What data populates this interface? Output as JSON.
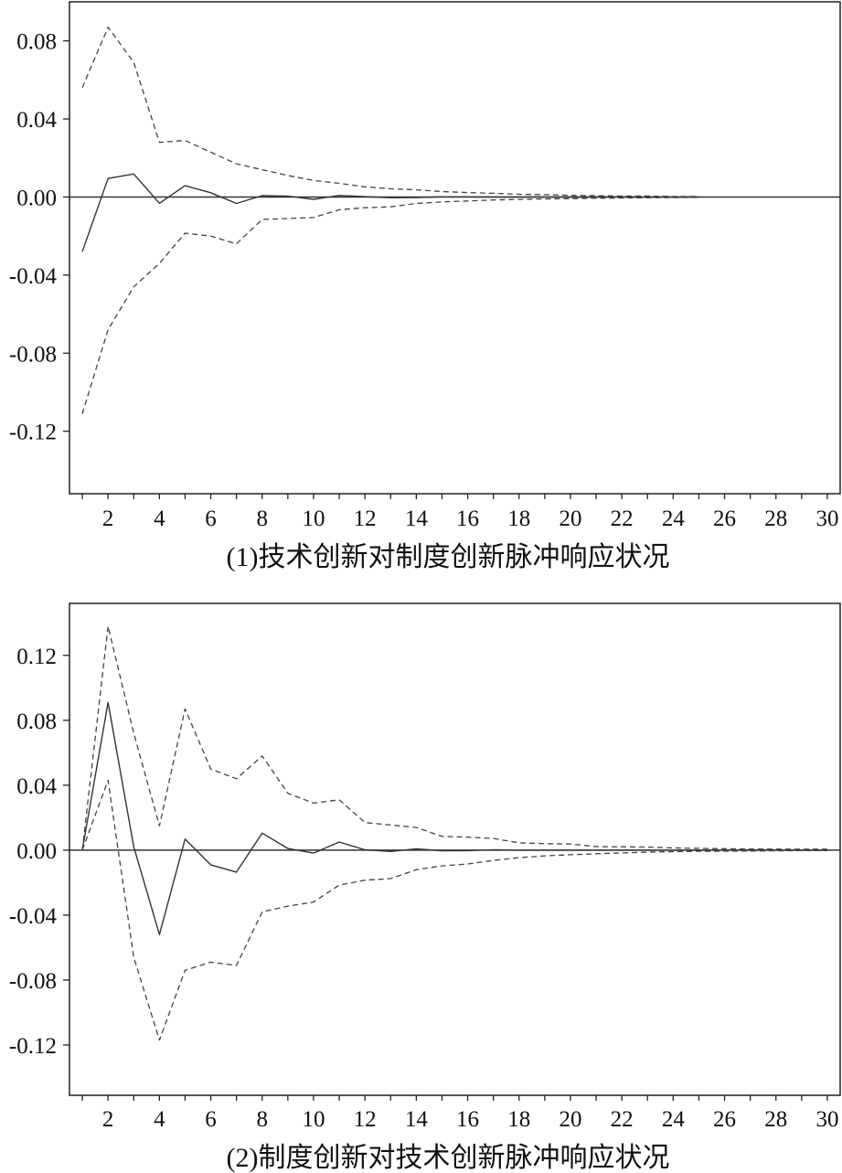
{
  "chart_data": [
    {
      "type": "line",
      "title": "(1)技术创新对制度创新脉冲响应状况",
      "x": [
        1,
        2,
        3,
        4,
        5,
        6,
        7,
        8,
        9,
        10,
        11,
        12,
        13,
        14,
        15,
        16,
        17,
        18,
        19,
        20,
        21,
        22,
        23,
        24,
        25
      ],
      "series": [
        {
          "style": "solid",
          "color": "#333333",
          "values": [
            -0.028,
            0.0095,
            0.0118,
            -0.0032,
            0.0058,
            0.0022,
            -0.0033,
            0.0007,
            0.0004,
            -0.0012,
            0.0008,
            0.0002,
            -0.0004,
            -0.0003,
            0.0001,
            0.0001,
            0,
            0,
            0,
            0,
            0,
            0,
            0,
            0,
            0
          ]
        },
        {
          "style": "dashed",
          "color": "#444444",
          "values": [
            0.056,
            0.087,
            0.069,
            0.028,
            0.029,
            0.023,
            0.017,
            0.014,
            0.011,
            0.0085,
            0.007,
            0.0052,
            0.0042,
            0.0037,
            0.0028,
            0.0023,
            0.0019,
            0.0014,
            0.0012,
            0.0009,
            0.0007,
            0.0005,
            0.0005,
            0.0003,
            0.0003
          ]
        },
        {
          "style": "dashed",
          "color": "#444444",
          "values": [
            -0.111,
            -0.068,
            -0.046,
            -0.034,
            -0.0185,
            -0.02,
            -0.024,
            -0.0115,
            -0.011,
            -0.0105,
            -0.0065,
            -0.0055,
            -0.005,
            -0.0033,
            -0.0025,
            -0.002,
            -0.0015,
            -0.0012,
            -0.001,
            -0.0008,
            -0.0006,
            -0.0005,
            -0.0004,
            -0.0003,
            -0.0002
          ]
        }
      ],
      "xlim": [
        0.5,
        30.5
      ],
      "ylim": [
        -0.152,
        0.1
      ],
      "xticks": [
        2,
        4,
        6,
        8,
        10,
        12,
        14,
        16,
        18,
        20,
        22,
        24,
        26,
        28,
        30
      ],
      "xtick_labels": [
        "2",
        "4",
        "6",
        "8",
        "10",
        "12",
        "14",
        "16",
        "18",
        "20",
        "22",
        "24",
        "26",
        "28",
        "30"
      ],
      "yticks": [
        0.08,
        0.04,
        0,
        -0.04,
        -0.08,
        -0.12
      ],
      "ytick_labels": [
        "0.08",
        "0.04",
        "0.00",
        "-0.04",
        "-0.08",
        "-0.12"
      ],
      "zero_line": true,
      "grid": false
    },
    {
      "type": "line",
      "title": "(2)制度创新对技术创新脉冲响应状况",
      "x": [
        1,
        2,
        3,
        4,
        5,
        6,
        7,
        8,
        9,
        10,
        11,
        12,
        13,
        14,
        15,
        16,
        17,
        18,
        19,
        20,
        21,
        22,
        23,
        24,
        25,
        26,
        27,
        28,
        29,
        30
      ],
      "series": [
        {
          "style": "solid",
          "color": "#333333",
          "values": [
            0,
            0.091,
            0.002,
            -0.052,
            0.0068,
            -0.009,
            -0.0135,
            0.0105,
            0.001,
            -0.0018,
            0.005,
            0.0002,
            -0.0008,
            0.0008,
            -0.0004,
            -0.0003,
            0.0003,
            0,
            0,
            0,
            0,
            0,
            0,
            0,
            0,
            0,
            0,
            0,
            0,
            0
          ]
        },
        {
          "style": "dashed",
          "color": "#444444",
          "values": [
            0,
            0.138,
            0.072,
            0.015,
            0.087,
            0.05,
            0.044,
            0.058,
            0.035,
            0.029,
            0.031,
            0.017,
            0.0155,
            0.014,
            0.0085,
            0.008,
            0.0072,
            0.0045,
            0.004,
            0.0038,
            0.0022,
            0.0021,
            0.0019,
            0.0014,
            0.0011,
            0.0009,
            0.0007,
            0.0007,
            0.0006,
            0.0006
          ]
        },
        {
          "style": "dashed",
          "color": "#444444",
          "values": [
            0,
            0.043,
            -0.066,
            -0.117,
            -0.074,
            -0.069,
            -0.071,
            -0.038,
            -0.0345,
            -0.032,
            -0.0215,
            -0.0185,
            -0.0175,
            -0.012,
            -0.0097,
            -0.0085,
            -0.0063,
            -0.0046,
            -0.0035,
            -0.0028,
            -0.0022,
            -0.0017,
            -0.0012,
            -0.0009,
            -0.0007,
            -0.0006,
            -0.0005,
            -0.0004,
            -0.0003,
            -0.0003
          ]
        }
      ],
      "xlim": [
        0.5,
        30.5
      ],
      "ylim": [
        -0.151,
        0.152
      ],
      "xticks": [
        2,
        4,
        6,
        8,
        10,
        12,
        14,
        16,
        18,
        20,
        22,
        24,
        26,
        28,
        30
      ],
      "xtick_labels": [
        "2",
        "4",
        "6",
        "8",
        "10",
        "12",
        "14",
        "16",
        "18",
        "20",
        "22",
        "24",
        "26",
        "28",
        "30"
      ],
      "yticks": [
        0.12,
        0.08,
        0.04,
        0,
        -0.04,
        -0.08,
        -0.12
      ],
      "ytick_labels": [
        "0.12",
        "0.08",
        "0.04",
        "0.00",
        "-0.04",
        "-0.08",
        "-0.12"
      ],
      "zero_line": true,
      "grid": false
    }
  ]
}
